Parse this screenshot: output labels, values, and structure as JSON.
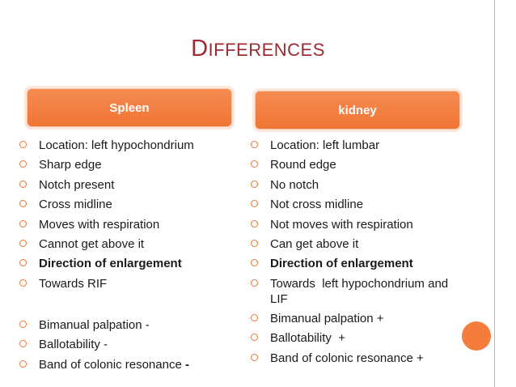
{
  "title": {
    "first_letter": "D",
    "rest": "ifferences"
  },
  "headers": {
    "left": "Spleen",
    "right": "kidney"
  },
  "spleen_items": [
    {
      "text": "Location: left hypochondrium"
    },
    {
      "text": "Sharp edge"
    },
    {
      "text": "Notch present"
    },
    {
      "text": "Cross midline"
    },
    {
      "text": "Moves with respiration"
    },
    {
      "text": "Cannot get above it"
    },
    {
      "text": "Direction of enlargement"
    },
    {
      "text": "Towards RIF"
    },
    {
      "text": "Bimanual palpation -"
    },
    {
      "text": "Ballotability -"
    },
    {
      "text": "Band of colonic resonance ",
      "suffix": "-"
    }
  ],
  "kidney_items": [
    {
      "text": "Location: left lumbar"
    },
    {
      "text": "Round edge"
    },
    {
      "text": "No notch"
    },
    {
      "text": "Not cross midline"
    },
    {
      "text": "Not moves with respiration"
    },
    {
      "text": "Can get above it"
    },
    {
      "text": "Direction of enlargement"
    },
    {
      "text": "Towards  left hypochondrium and LIF"
    },
    {
      "text": "Bimanual palpation +"
    },
    {
      "text": "Ballotability  +"
    },
    {
      "text": "Band of colonic resonance +"
    }
  ],
  "colors": {
    "accent": "#f07534",
    "title": "#9e2a2f"
  }
}
